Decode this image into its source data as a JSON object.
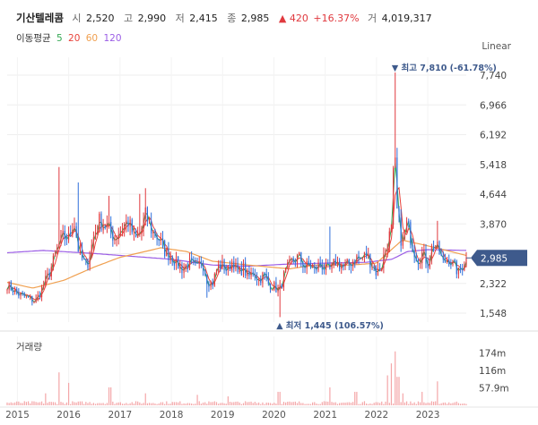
{
  "stock": {
    "name": "기산텔레콤",
    "open_label": "시",
    "open": "2,520",
    "high_label": "고",
    "high": "2,990",
    "low_label": "저",
    "low": "2,415",
    "close_label": "종",
    "close": "2,985",
    "change": "▲ 420",
    "change_pct": "+16.37%",
    "volume_label": "거",
    "volume": "4,019,317"
  },
  "legend": {
    "title": "이동평균",
    "ma5": "5",
    "ma20": "20",
    "ma60": "60",
    "ma120": "120"
  },
  "controls": {
    "scale": "Linear"
  },
  "colors": {
    "up": "#e0393e",
    "down": "#2f6fdb",
    "ma5": "#34a853",
    "ma20": "#e8433b",
    "ma60": "#f0a050",
    "ma120": "#9b5de5",
    "current_price_tag": "#3e5a8c",
    "vol": "#f4a6a8"
  },
  "chart_data": {
    "type": "candlestick",
    "title": "",
    "y_ticks": [
      "7,740",
      "6,966",
      "6,192",
      "5,418",
      "4,644",
      "3,870",
      "3,096",
      "2,322",
      "1,548"
    ],
    "ylim": [
      1548,
      7740
    ],
    "x_ticks": [
      "2015",
      "2016",
      "2017",
      "2018",
      "2019",
      "2020",
      "2021",
      "2022",
      "2023"
    ],
    "x_range": [
      2014.8,
      2023.75
    ],
    "current_price": "2,985",
    "max_annotation": "최고 7,810 (-61.78%)",
    "min_annotation": "최저 1,445 (106.57%)",
    "volume_label": "거래량",
    "volume_ticks": [
      "174m",
      "116m",
      "57.9m"
    ],
    "volume_ylim": [
      0,
      230
    ],
    "anchors_close": [
      [
        2014.8,
        2300
      ],
      [
        2015.0,
        2050
      ],
      [
        2015.2,
        1950
      ],
      [
        2015.35,
        1850
      ],
      [
        2015.5,
        2250
      ],
      [
        2015.65,
        2700
      ],
      [
        2015.8,
        3300
      ],
      [
        2015.9,
        3550
      ],
      [
        2016.0,
        3500
      ],
      [
        2016.1,
        4000
      ],
      [
        2016.2,
        3100
      ],
      [
        2016.35,
        2750
      ],
      [
        2016.5,
        3600
      ],
      [
        2016.6,
        3950
      ],
      [
        2016.75,
        3800
      ],
      [
        2016.9,
        3500
      ],
      [
        2017.0,
        3700
      ],
      [
        2017.15,
        3950
      ],
      [
        2017.3,
        3450
      ],
      [
        2017.4,
        3650
      ],
      [
        2017.5,
        4100
      ],
      [
        2017.6,
        3750
      ],
      [
        2017.75,
        3500
      ],
      [
        2017.9,
        3100
      ],
      [
        2018.0,
        3050
      ],
      [
        2018.1,
        2850
      ],
      [
        2018.2,
        2700
      ],
      [
        2018.35,
        2850
      ],
      [
        2018.5,
        2700
      ],
      [
        2018.6,
        2950
      ],
      [
        2018.7,
        2400
      ],
      [
        2018.8,
        2300
      ],
      [
        2018.9,
        2750
      ],
      [
        2019.0,
        2800
      ],
      [
        2019.1,
        2650
      ],
      [
        2019.2,
        2950
      ],
      [
        2019.3,
        2550
      ],
      [
        2019.4,
        2750
      ],
      [
        2019.5,
        2450
      ],
      [
        2019.6,
        2650
      ],
      [
        2019.7,
        2400
      ],
      [
        2019.8,
        2550
      ],
      [
        2019.9,
        2300
      ],
      [
        2020.0,
        2250
      ],
      [
        2020.1,
        2100
      ],
      [
        2020.2,
        2550
      ],
      [
        2020.35,
        2900
      ],
      [
        2020.5,
        3000
      ],
      [
        2020.6,
        2750
      ],
      [
        2020.7,
        2800
      ],
      [
        2020.8,
        2650
      ],
      [
        2020.9,
        2850
      ],
      [
        2021.0,
        2700
      ],
      [
        2021.1,
        2650
      ],
      [
        2021.2,
        2900
      ],
      [
        2021.35,
        2750
      ],
      [
        2021.5,
        2850
      ],
      [
        2021.6,
        3000
      ],
      [
        2021.7,
        2950
      ],
      [
        2021.8,
        3100
      ],
      [
        2021.9,
        2850
      ],
      [
        2022.0,
        2600
      ],
      [
        2022.1,
        2800
      ],
      [
        2022.2,
        3350
      ],
      [
        2022.3,
        3750
      ],
      [
        2022.35,
        6200
      ],
      [
        2022.38,
        4400
      ],
      [
        2022.42,
        4000
      ],
      [
        2022.5,
        3300
      ],
      [
        2022.6,
        3900
      ],
      [
        2022.7,
        3300
      ],
      [
        2022.8,
        2950
      ],
      [
        2022.9,
        3100
      ],
      [
        2023.0,
        2850
      ],
      [
        2023.1,
        3350
      ],
      [
        2023.2,
        3200
      ],
      [
        2023.3,
        2850
      ],
      [
        2023.4,
        3000
      ],
      [
        2023.5,
        2800
      ],
      [
        2023.6,
        2600
      ],
      [
        2023.75,
        2985
      ]
    ],
    "spikes": [
      [
        2015.8,
        5350
      ],
      [
        2016.2,
        4950
      ],
      [
        2016.8,
        4600
      ],
      [
        2017.4,
        4650
      ],
      [
        2017.5,
        4800
      ],
      [
        2018.7,
        1950
      ],
      [
        2020.1,
        1445
      ],
      [
        2021.1,
        3800
      ],
      [
        2022.35,
        7810
      ],
      [
        2022.38,
        5450
      ],
      [
        2023.2,
        3950
      ]
    ],
    "ma120_anchors": [
      [
        2014.8,
        3120
      ],
      [
        2015.5,
        3180
      ],
      [
        2016.5,
        3100
      ],
      [
        2017.3,
        3020
      ],
      [
        2018.0,
        2950
      ],
      [
        2018.8,
        2800
      ],
      [
        2019.5,
        2770
      ],
      [
        2020.2,
        2820
      ],
      [
        2021.0,
        2850
      ],
      [
        2021.8,
        2870
      ],
      [
        2022.3,
        2950
      ],
      [
        2022.6,
        3150
      ],
      [
        2023.0,
        3200
      ],
      [
        2023.75,
        3180
      ]
    ],
    "ma60_anchors": [
      [
        2014.8,
        2350
      ],
      [
        2015.3,
        2200
      ],
      [
        2015.9,
        2400
      ],
      [
        2016.5,
        2750
      ],
      [
        2017.0,
        3000
      ],
      [
        2017.8,
        3250
      ],
      [
        2018.3,
        3150
      ],
      [
        2018.8,
        2900
      ],
      [
        2019.5,
        2800
      ],
      [
        2020.3,
        2700
      ],
      [
        2020.8,
        2800
      ],
      [
        2021.5,
        2800
      ],
      [
        2022.0,
        2850
      ],
      [
        2022.5,
        3450
      ],
      [
        2023.0,
        3300
      ],
      [
        2023.75,
        3050
      ]
    ],
    "vol_spikes": [
      [
        2015.55,
        40
      ],
      [
        2015.8,
        110
      ],
      [
        2016.0,
        75
      ],
      [
        2016.8,
        60
      ],
      [
        2017.5,
        40
      ],
      [
        2018.5,
        35
      ],
      [
        2019.1,
        30
      ],
      [
        2020.1,
        45
      ],
      [
        2021.1,
        60
      ],
      [
        2021.6,
        45
      ],
      [
        2022.2,
        100
      ],
      [
        2022.3,
        140
      ],
      [
        2022.35,
        180
      ],
      [
        2022.42,
        95
      ],
      [
        2022.5,
        40
      ],
      [
        2022.9,
        45
      ],
      [
        2023.2,
        80
      ]
    ]
  }
}
